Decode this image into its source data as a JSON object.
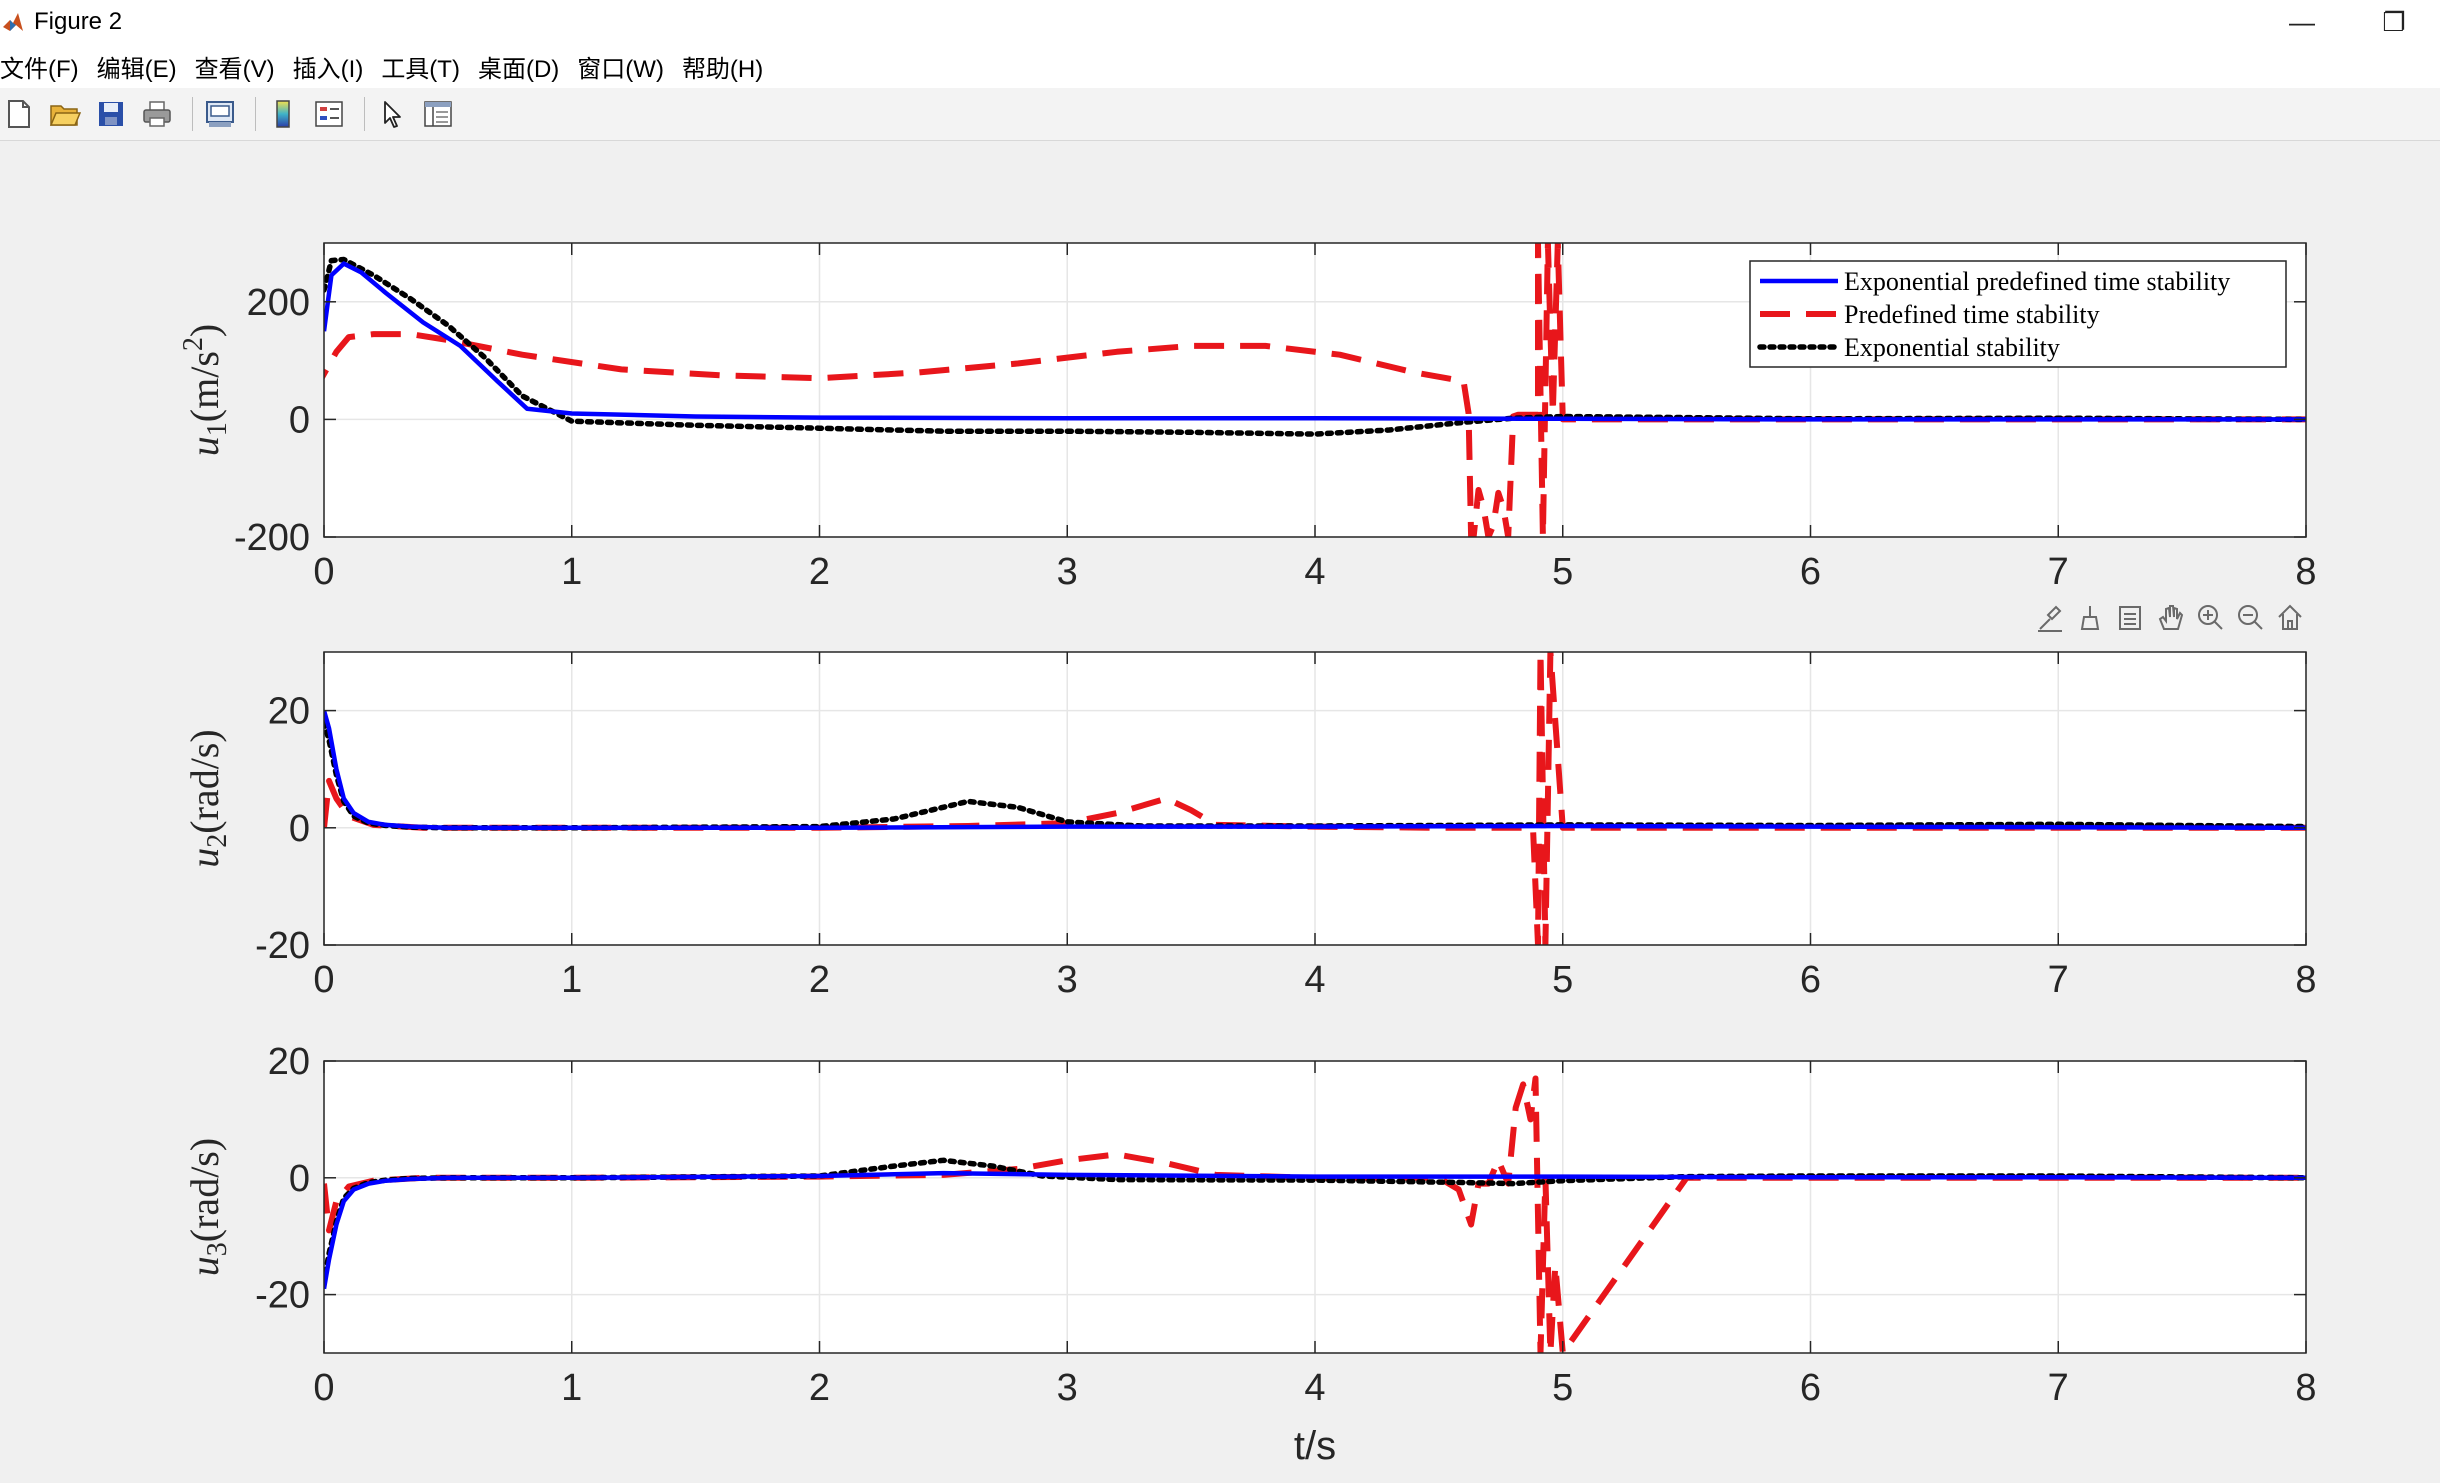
{
  "window": {
    "title": "Figure 2",
    "minimize_label": "—",
    "restore_label": "❐"
  },
  "menu": [
    "文件(F)",
    "编辑(E)",
    "查看(V)",
    "插入(I)",
    "工具(T)",
    "桌面(D)",
    "窗口(W)",
    "帮助(H)"
  ],
  "toolbar_icons": [
    "new-figure-icon",
    "open-file-icon",
    "save-icon",
    "print-icon",
    "print-preview-icon",
    "colorbar-icon",
    "legend-icon",
    "select-pointer-icon",
    "property-inspector-icon"
  ],
  "axes_toolbar_icons": [
    "brush-icon",
    "data-tips-icon",
    "export-icon",
    "pan-icon",
    "zoom-in-icon",
    "zoom-out-icon",
    "home-icon"
  ],
  "colors": {
    "blue": "#0000ff",
    "red": "#e8161b",
    "black": "#000000",
    "background": "#f0f0f0"
  },
  "chart_data": [
    {
      "type": "line",
      "ylabel_base": "u",
      "ylabel_sub": "1",
      "ylabel_unit": "(m/s",
      "ylabel_sup": "2",
      "ylabel_close": ")",
      "xlim": [
        0,
        8
      ],
      "ylim": [
        -200,
        300
      ],
      "xticks": [
        "0",
        "1",
        "2",
        "3",
        "4",
        "5",
        "6",
        "7",
        "8"
      ],
      "yticks": [
        {
          "v": 200,
          "label": "200"
        },
        {
          "v": 0,
          "label": "0"
        },
        {
          "v": -200,
          "label": "-200"
        }
      ],
      "grid": true,
      "legend": {
        "placement": "top-right",
        "entries": [
          {
            "label": "Exponential predefined time stability",
            "style": "solid",
            "color": "#0000ff"
          },
          {
            "label": "Predefined time stability",
            "style": "dashed",
            "color": "#e8161b"
          },
          {
            "label": "Exponential stability",
            "style": "dotted",
            "color": "#000000"
          }
        ]
      },
      "series": [
        {
          "style": "solid",
          "color": "#0000ff",
          "x": [
            0,
            0.03,
            0.08,
            0.15,
            0.25,
            0.4,
            0.55,
            0.7,
            0.82,
            1,
            1.5,
            2,
            3,
            4,
            5,
            6,
            7,
            8
          ],
          "y": [
            150,
            245,
            265,
            250,
            215,
            165,
            125,
            65,
            18,
            10,
            5,
            3,
            2,
            2,
            1,
            0,
            0,
            0
          ]
        },
        {
          "style": "dashed",
          "color": "#e8161b",
          "x": [
            -0.05,
            0.05,
            0.1,
            0.2,
            0.35,
            0.5,
            0.8,
            1.2,
            1.6,
            2,
            2.4,
            2.8,
            3.2,
            3.5,
            3.8,
            4.1,
            4.4,
            4.6,
            4.62,
            4.63,
            4.64,
            4.66,
            4.68,
            4.7,
            4.72,
            4.74,
            4.76,
            4.78,
            4.8,
            4.82,
            4.9,
            4.9,
            4.92,
            4.94,
            4.96,
            4.98,
            5,
            5.5,
            6,
            7,
            8
          ],
          "y": [
            40,
            115,
            140,
            145,
            145,
            135,
            110,
            85,
            75,
            70,
            80,
            95,
            115,
            125,
            125,
            110,
            80,
            65,
            10,
            -200,
            -200,
            -120,
            -150,
            -200,
            -180,
            -125,
            -150,
            -200,
            5,
            8,
            8,
            300,
            -200,
            300,
            10,
            300,
            0,
            0,
            0,
            0,
            0
          ]
        },
        {
          "style": "dotted",
          "color": "#000000",
          "x": [
            0,
            0.03,
            0.08,
            0.2,
            0.35,
            0.5,
            0.65,
            0.8,
            1,
            1.5,
            2,
            2.5,
            3,
            3.5,
            4,
            4.3,
            4.6,
            4.8,
            5,
            5.5,
            6,
            7,
            8
          ],
          "y": [
            220,
            270,
            272,
            245,
            205,
            160,
            105,
            40,
            -3,
            -10,
            -15,
            -20,
            -20,
            -22,
            -25,
            -18,
            -5,
            2,
            5,
            3,
            1,
            2,
            0
          ]
        }
      ]
    },
    {
      "type": "line",
      "ylabel_base": "u",
      "ylabel_sub": "2",
      "ylabel_unit": "(rad/s)",
      "ylabel_sup": "",
      "ylabel_close": "",
      "xlim": [
        0,
        8
      ],
      "ylim": [
        -20,
        30
      ],
      "xticks": [
        "0",
        "1",
        "2",
        "3",
        "4",
        "5",
        "6",
        "7",
        "8"
      ],
      "yticks": [
        {
          "v": 20,
          "label": "20"
        },
        {
          "v": 0,
          "label": "0"
        },
        {
          "v": -20,
          "label": "-20"
        }
      ],
      "grid": true,
      "series": [
        {
          "style": "solid",
          "color": "#0000ff",
          "x": [
            0,
            0.02,
            0.05,
            0.08,
            0.12,
            0.18,
            0.25,
            0.35,
            0.5,
            1,
            2,
            3,
            4,
            5,
            6,
            7,
            8
          ],
          "y": [
            20,
            17,
            10,
            5,
            2.5,
            1,
            0.5,
            0.2,
            0,
            0,
            0,
            0.2,
            0.2,
            0.3,
            0.2,
            0.1,
            0
          ]
        },
        {
          "style": "dashed",
          "color": "#e8161b",
          "x": [
            0,
            0.02,
            0.05,
            0.1,
            0.2,
            0.4,
            1,
            2,
            2.6,
            3,
            3.2,
            3.4,
            3.5,
            3.6,
            4,
            4.5,
            4.88,
            4.9,
            4.91,
            4.93,
            4.95,
            5,
            5.5,
            6,
            7,
            8
          ],
          "y": [
            0,
            8,
            5,
            2,
            0.5,
            0,
            0,
            0,
            0.3,
            0.8,
            2.5,
            5,
            3,
            0.5,
            0.2,
            0,
            0,
            -20,
            30,
            -20,
            30,
            0,
            0,
            0,
            0,
            0
          ]
        },
        {
          "style": "dotted",
          "color": "#000000",
          "x": [
            0,
            0.02,
            0.05,
            0.08,
            0.12,
            0.18,
            0.25,
            0.35,
            0.5,
            1,
            2,
            2.3,
            2.6,
            2.8,
            3,
            3.3,
            4,
            5,
            6,
            7,
            8
          ],
          "y": [
            18,
            15,
            9,
            4.5,
            2,
            0.8,
            0.4,
            0.1,
            0,
            0,
            0.2,
            1.5,
            4.5,
            3.5,
            1,
            0.3,
            0.3,
            0.5,
            0.4,
            0.6,
            0.2
          ]
        }
      ]
    },
    {
      "type": "line",
      "ylabel_base": "u",
      "ylabel_sub": "3",
      "ylabel_unit": "(rad/s)",
      "ylabel_sup": "",
      "ylabel_close": "",
      "xlim": [
        0,
        8
      ],
      "ylim": [
        -30,
        20
      ],
      "xticks": [
        "0",
        "1",
        "2",
        "3",
        "4",
        "5",
        "6",
        "7",
        "8"
      ],
      "yticks": [
        {
          "v": 20,
          "label": "20"
        },
        {
          "v": 0,
          "label": "0"
        },
        {
          "v": -20,
          "label": "-20"
        }
      ],
      "xlabel": "t/s",
      "grid": true,
      "series": [
        {
          "style": "solid",
          "color": "#0000ff",
          "x": [
            0,
            0.02,
            0.05,
            0.08,
            0.12,
            0.18,
            0.25,
            0.35,
            0.5,
            1,
            2,
            2.5,
            3,
            4,
            5,
            6,
            7,
            8
          ],
          "y": [
            -19,
            -14,
            -8,
            -4,
            -2,
            -1,
            -0.5,
            -0.2,
            0,
            0,
            0.3,
            0.8,
            0.5,
            0.2,
            0.2,
            0.1,
            0.1,
            0
          ]
        },
        {
          "style": "dashed",
          "color": "#e8161b",
          "x": [
            0,
            0.02,
            0.05,
            0.1,
            0.2,
            0.4,
            1,
            2,
            2.5,
            2.8,
            3,
            3.2,
            3.4,
            3.6,
            4,
            4.5,
            4.58,
            4.63,
            4.66,
            4.7,
            4.74,
            4.78,
            4.81,
            4.84,
            4.87,
            4.89,
            4.91,
            4.93,
            4.95,
            4.97,
            5,
            5.5,
            6,
            7,
            8
          ],
          "y": [
            -1,
            -9,
            -4,
            -1.5,
            -0.5,
            0,
            0,
            0.2,
            0.5,
            1.5,
            3,
            4,
            2.5,
            0.5,
            0,
            0,
            -2,
            -8,
            -1,
            -1,
            3,
            -1,
            12,
            16,
            10,
            17,
            -30,
            0,
            -30,
            -15,
            -30,
            0,
            0,
            0,
            0
          ]
        },
        {
          "style": "dotted",
          "color": "#000000",
          "x": [
            0,
            0.02,
            0.05,
            0.08,
            0.12,
            0.18,
            0.25,
            0.35,
            0.5,
            1,
            2,
            2.3,
            2.5,
            2.7,
            2.9,
            3.2,
            4,
            4.6,
            4.8,
            5,
            5.5,
            6,
            7,
            8
          ],
          "y": [
            -18,
            -13,
            -7.5,
            -3.5,
            -1.8,
            -0.8,
            -0.4,
            -0.1,
            0,
            0,
            0.3,
            2,
            3,
            2,
            0.3,
            -0.3,
            -0.4,
            -0.8,
            -1,
            -0.5,
            0.2,
            0.3,
            0.3,
            0
          ]
        }
      ]
    }
  ]
}
